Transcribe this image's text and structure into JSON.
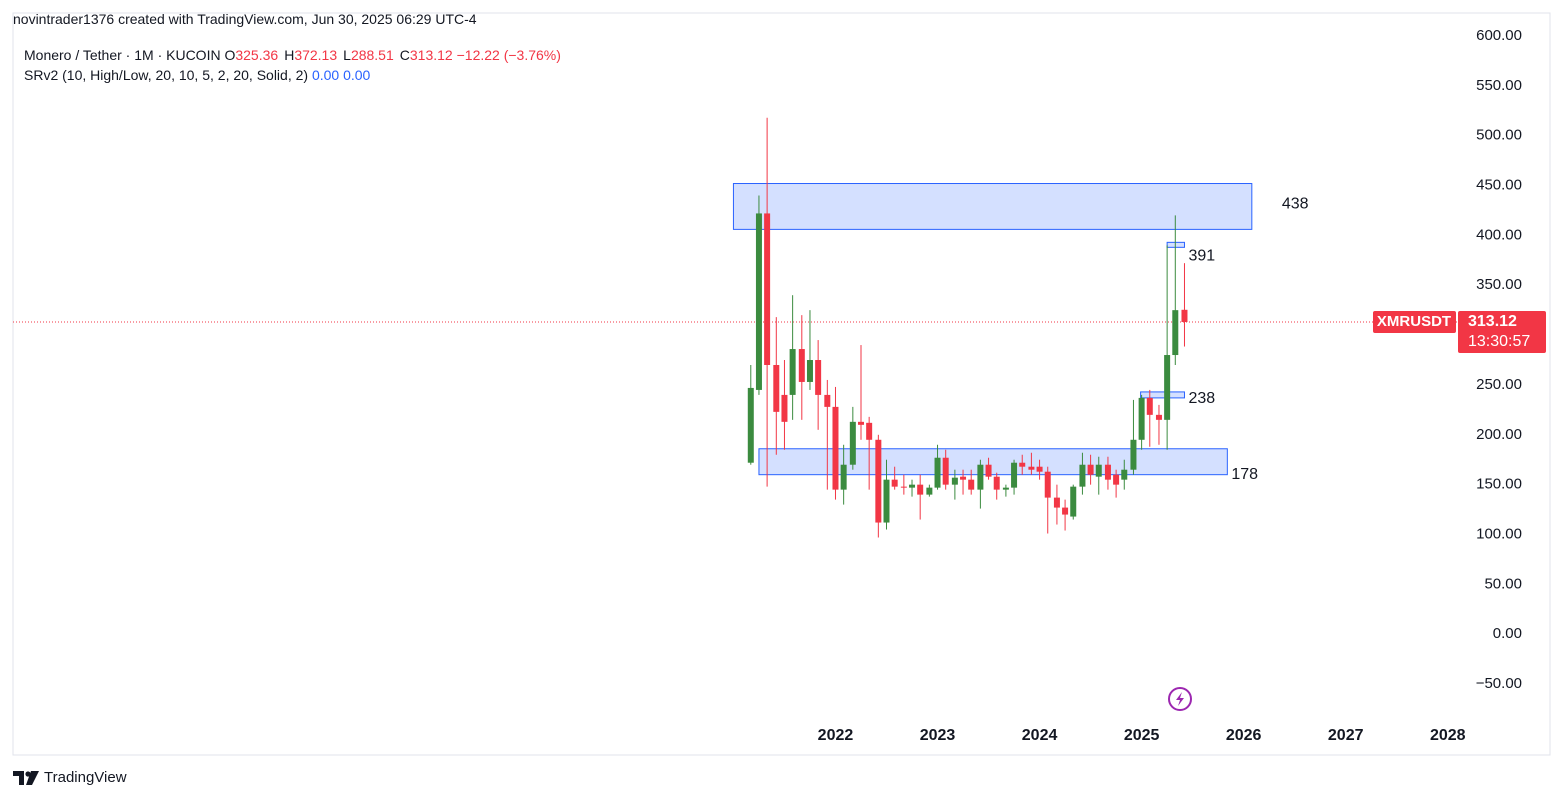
{
  "header": {
    "credit": "novintrader1376 created with TradingView.com, Jun 30, 2025 06:29 UTC-4",
    "symbol": "Monero / Tether · 1M · KUCOIN",
    "ohlc": [
      {
        "label": "O",
        "value": 325.36
      },
      {
        "label": "H",
        "value": 372.13
      },
      {
        "label": "L",
        "value": 288.51
      },
      {
        "label": "C",
        "value": 313.12
      }
    ],
    "change": "−12.22 (−3.76%)",
    "indicator": "SRv2 (10, High/Low, 20, 10, 5, 2, 20, Solid, 2)",
    "indicator_values": [
      "0.00",
      "0.00"
    ]
  },
  "footer": "TradingView",
  "chart_data": {
    "type": "candlestick",
    "up_color": "#3b8b3f",
    "down_color": "#f23645",
    "xlim": [
      2013.94,
      2028.12
    ],
    "xticks": [
      2022,
      2023,
      2024,
      2025,
      2026,
      2027,
      2028
    ],
    "ylim": [
      -81,
      623
    ],
    "yticks": [
      {
        "value": -50,
        "label": "−50.00"
      },
      {
        "value": 0,
        "label": "0.00"
      },
      {
        "value": 50,
        "label": "50.00"
      },
      {
        "value": 100,
        "label": "100.00"
      },
      {
        "value": 150,
        "label": "150.00"
      },
      {
        "value": 200,
        "label": "200.00"
      },
      {
        "value": 250,
        "label": "250.00"
      },
      {
        "value": 300,
        "label": "300.00"
      },
      {
        "value": 350,
        "label": "350.00"
      },
      {
        "value": 400,
        "label": "400.00"
      },
      {
        "value": 450,
        "label": "450.00"
      },
      {
        "value": 500,
        "label": "500.00"
      },
      {
        "value": 550,
        "label": "550.00"
      },
      {
        "value": 600,
        "label": "600.00"
      }
    ],
    "candles": [
      {
        "x": 2021.17,
        "o": 172,
        "h": 270,
        "l": 170,
        "c": 247
      },
      {
        "x": 2021.25,
        "o": 245,
        "h": 440,
        "l": 240,
        "c": 422
      },
      {
        "x": 2021.33,
        "o": 422,
        "h": 518,
        "l": 148,
        "c": 270
      },
      {
        "x": 2021.42,
        "o": 270,
        "h": 318,
        "l": 180,
        "c": 223
      },
      {
        "x": 2021.5,
        "o": 240,
        "h": 275,
        "l": 185,
        "c": 213
      },
      {
        "x": 2021.58,
        "o": 240,
        "h": 340,
        "l": 215,
        "c": 286
      },
      {
        "x": 2021.67,
        "o": 286,
        "h": 320,
        "l": 215,
        "c": 253
      },
      {
        "x": 2021.75,
        "o": 253,
        "h": 325,
        "l": 245,
        "c": 275
      },
      {
        "x": 2021.83,
        "o": 275,
        "h": 295,
        "l": 205,
        "c": 240
      },
      {
        "x": 2021.92,
        "o": 240,
        "h": 255,
        "l": 145,
        "c": 228
      },
      {
        "x": 2022,
        "o": 228,
        "h": 248,
        "l": 135,
        "c": 145
      },
      {
        "x": 2022.08,
        "o": 145,
        "h": 190,
        "l": 130,
        "c": 170
      },
      {
        "x": 2022.17,
        "o": 170,
        "h": 228,
        "l": 165,
        "c": 213
      },
      {
        "x": 2022.25,
        "o": 213,
        "h": 290,
        "l": 195,
        "c": 210
      },
      {
        "x": 2022.33,
        "o": 212,
        "h": 218,
        "l": 145,
        "c": 195
      },
      {
        "x": 2022.42,
        "o": 195,
        "h": 200,
        "l": 97,
        "c": 112
      },
      {
        "x": 2022.5,
        "o": 112,
        "h": 175,
        "l": 105,
        "c": 155
      },
      {
        "x": 2022.58,
        "o": 155,
        "h": 168,
        "l": 145,
        "c": 148
      },
      {
        "x": 2022.67,
        "o": 148,
        "h": 160,
        "l": 140,
        "c": 147
      },
      {
        "x": 2022.75,
        "o": 147,
        "h": 155,
        "l": 138,
        "c": 150
      },
      {
        "x": 2022.83,
        "o": 150,
        "h": 160,
        "l": 115,
        "c": 140
      },
      {
        "x": 2022.92,
        "o": 140,
        "h": 150,
        "l": 138,
        "c": 147
      },
      {
        "x": 2023,
        "o": 147,
        "h": 190,
        "l": 145,
        "c": 177
      },
      {
        "x": 2023.08,
        "o": 177,
        "h": 185,
        "l": 145,
        "c": 150
      },
      {
        "x": 2023.17,
        "o": 150,
        "h": 165,
        "l": 135,
        "c": 157
      },
      {
        "x": 2023.25,
        "o": 158,
        "h": 165,
        "l": 140,
        "c": 155
      },
      {
        "x": 2023.33,
        "o": 155,
        "h": 165,
        "l": 140,
        "c": 145
      },
      {
        "x": 2023.42,
        "o": 145,
        "h": 175,
        "l": 126,
        "c": 170
      },
      {
        "x": 2023.5,
        "o": 170,
        "h": 177,
        "l": 155,
        "c": 158
      },
      {
        "x": 2023.58,
        "o": 158,
        "h": 162,
        "l": 135,
        "c": 145
      },
      {
        "x": 2023.67,
        "o": 145,
        "h": 150,
        "l": 138,
        "c": 147
      },
      {
        "x": 2023.75,
        "o": 147,
        "h": 175,
        "l": 140,
        "c": 172
      },
      {
        "x": 2023.83,
        "o": 172,
        "h": 180,
        "l": 160,
        "c": 168
      },
      {
        "x": 2023.92,
        "o": 168,
        "h": 182,
        "l": 160,
        "c": 165
      },
      {
        "x": 2024,
        "o": 168,
        "h": 175,
        "l": 155,
        "c": 163
      },
      {
        "x": 2024.08,
        "o": 163,
        "h": 168,
        "l": 101,
        "c": 137
      },
      {
        "x": 2024.17,
        "o": 137,
        "h": 150,
        "l": 110,
        "c": 127
      },
      {
        "x": 2024.25,
        "o": 127,
        "h": 135,
        "l": 104,
        "c": 120
      },
      {
        "x": 2024.33,
        "o": 118,
        "h": 150,
        "l": 115,
        "c": 148
      },
      {
        "x": 2024.42,
        "o": 148,
        "h": 182,
        "l": 140,
        "c": 170
      },
      {
        "x": 2024.5,
        "o": 170,
        "h": 180,
        "l": 150,
        "c": 160
      },
      {
        "x": 2024.58,
        "o": 158,
        "h": 178,
        "l": 140,
        "c": 170
      },
      {
        "x": 2024.67,
        "o": 170,
        "h": 178,
        "l": 145,
        "c": 155
      },
      {
        "x": 2024.75,
        "o": 160,
        "h": 165,
        "l": 137,
        "c": 150
      },
      {
        "x": 2024.83,
        "o": 155,
        "h": 175,
        "l": 145,
        "c": 165
      },
      {
        "x": 2024.92,
        "o": 165,
        "h": 235,
        "l": 160,
        "c": 195
      },
      {
        "x": 2025,
        "o": 195,
        "h": 240,
        "l": 185,
        "c": 237
      },
      {
        "x": 2025.08,
        "o": 237,
        "h": 245,
        "l": 188,
        "c": 220
      },
      {
        "x": 2025.17,
        "o": 220,
        "h": 230,
        "l": 190,
        "c": 215
      },
      {
        "x": 2025.25,
        "o": 215,
        "h": 390,
        "l": 185,
        "c": 280
      },
      {
        "x": 2025.33,
        "o": 280,
        "h": 420,
        "l": 270,
        "c": 325
      },
      {
        "x": 2025.42,
        "o": 325.36,
        "h": 372.13,
        "l": 288.51,
        "c": 313.12
      }
    ],
    "zones": [
      {
        "label": "438",
        "top": 452,
        "bottom": 406,
        "x_start": 2021.0,
        "x_end": 2026.08
      },
      {
        "label": "391",
        "top": 393,
        "bottom": 388,
        "x_start": 2025.25,
        "x_end": 2025.42
      },
      {
        "label": "238",
        "top": 243,
        "bottom": 237,
        "x_start": 2024.99,
        "x_end": 2025.42
      },
      {
        "label": "178",
        "top": 186,
        "bottom": 160,
        "x_start": 2021.25,
        "x_end": 2025.84
      }
    ],
    "zone_color": "#2962ff",
    "last_price": {
      "symbol": "XMRUSDT",
      "value": 313.12,
      "countdown": "13:30:57"
    }
  }
}
